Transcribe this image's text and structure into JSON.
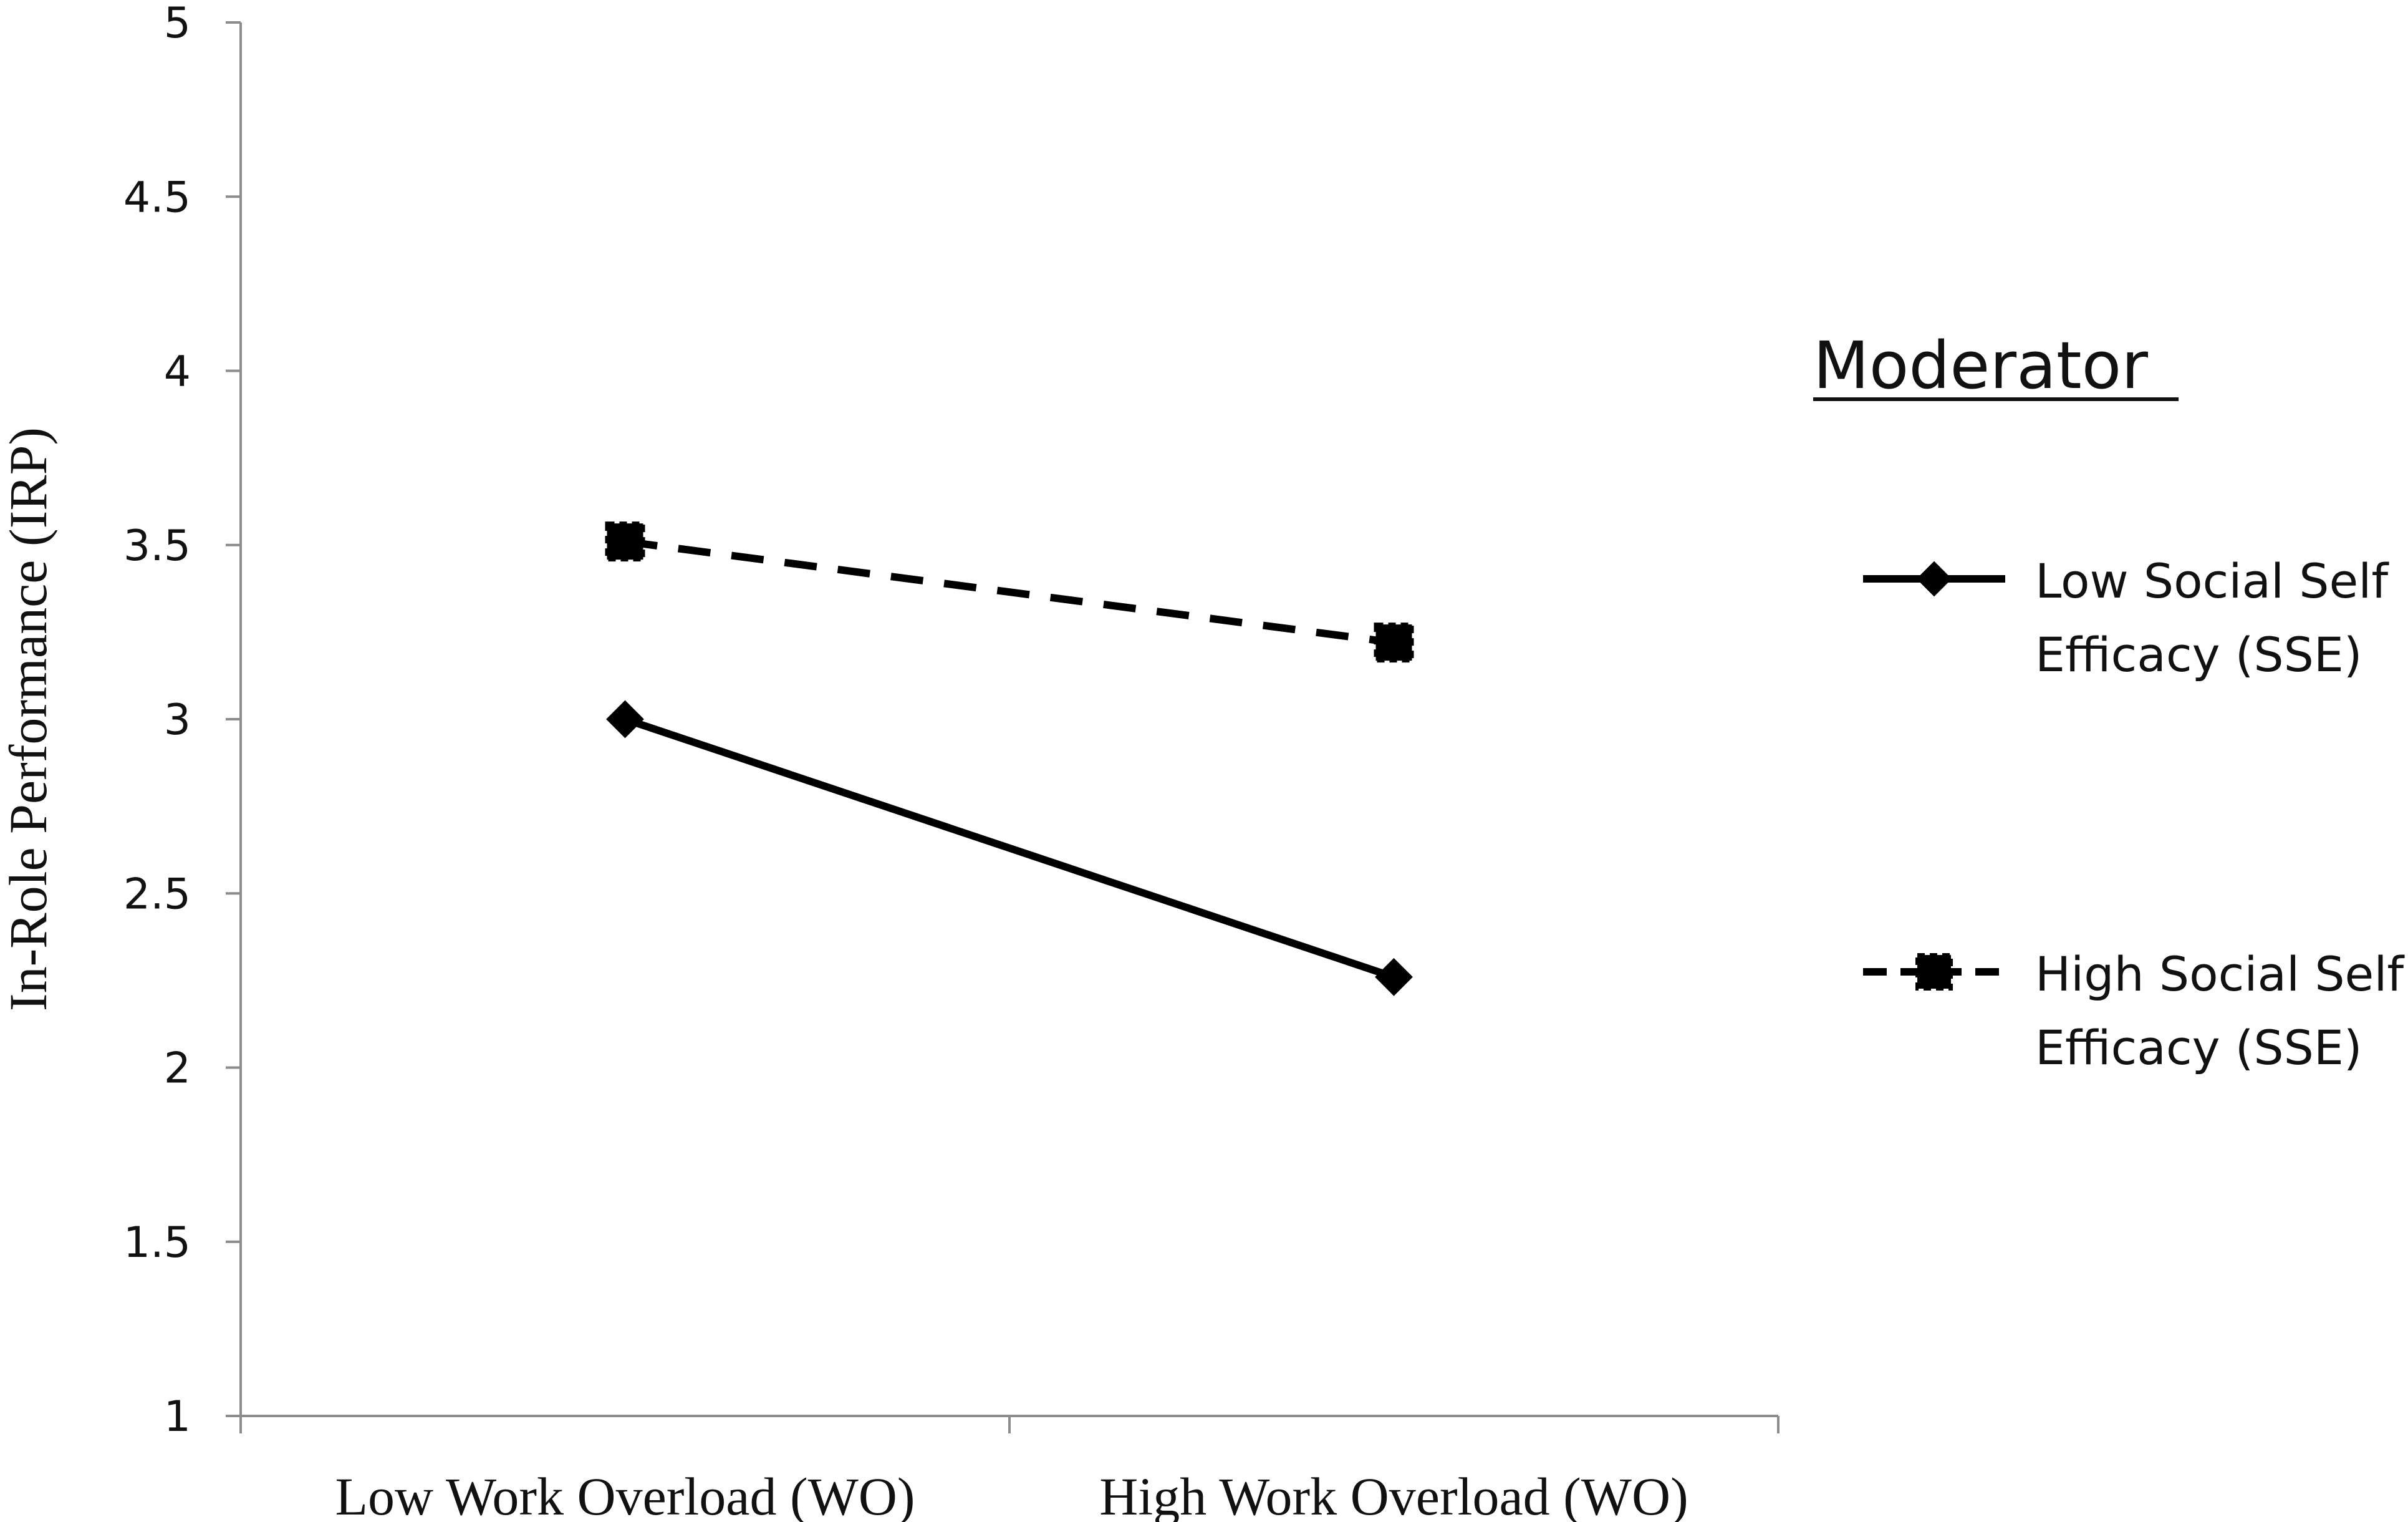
{
  "chart_data": {
    "type": "line",
    "categories": [
      "Low Work Overload (WO)",
      "High Work Overload (WO)"
    ],
    "series": [
      {
        "name": "Low Social Self Efficacy (SSE)",
        "values": [
          3.0,
          2.26
        ],
        "line_style": "solid",
        "marker": "diamond",
        "color": "#000000"
      },
      {
        "name": "High Social Self Efficacy (SSE)",
        "values": [
          3.51,
          3.22
        ],
        "line_style": "dashed",
        "marker": "square",
        "color": "#000000"
      }
    ],
    "ylabel": "In-Role Performance (IRP)",
    "xlabel": "",
    "ylim": [
      1,
      5
    ],
    "yticks": [
      "1",
      "1.5",
      "2",
      "2.5",
      "3",
      "3.5",
      "4",
      "4.5",
      "5"
    ],
    "legend": {
      "title": "Moderator",
      "placement": "right",
      "entries": [
        {
          "lines": [
            "Low Social Self",
            "Efficacy (SSE)"
          ]
        },
        {
          "lines": [
            "High Social Self",
            "Efficacy (SSE)"
          ]
        }
      ]
    },
    "grid": false
  }
}
